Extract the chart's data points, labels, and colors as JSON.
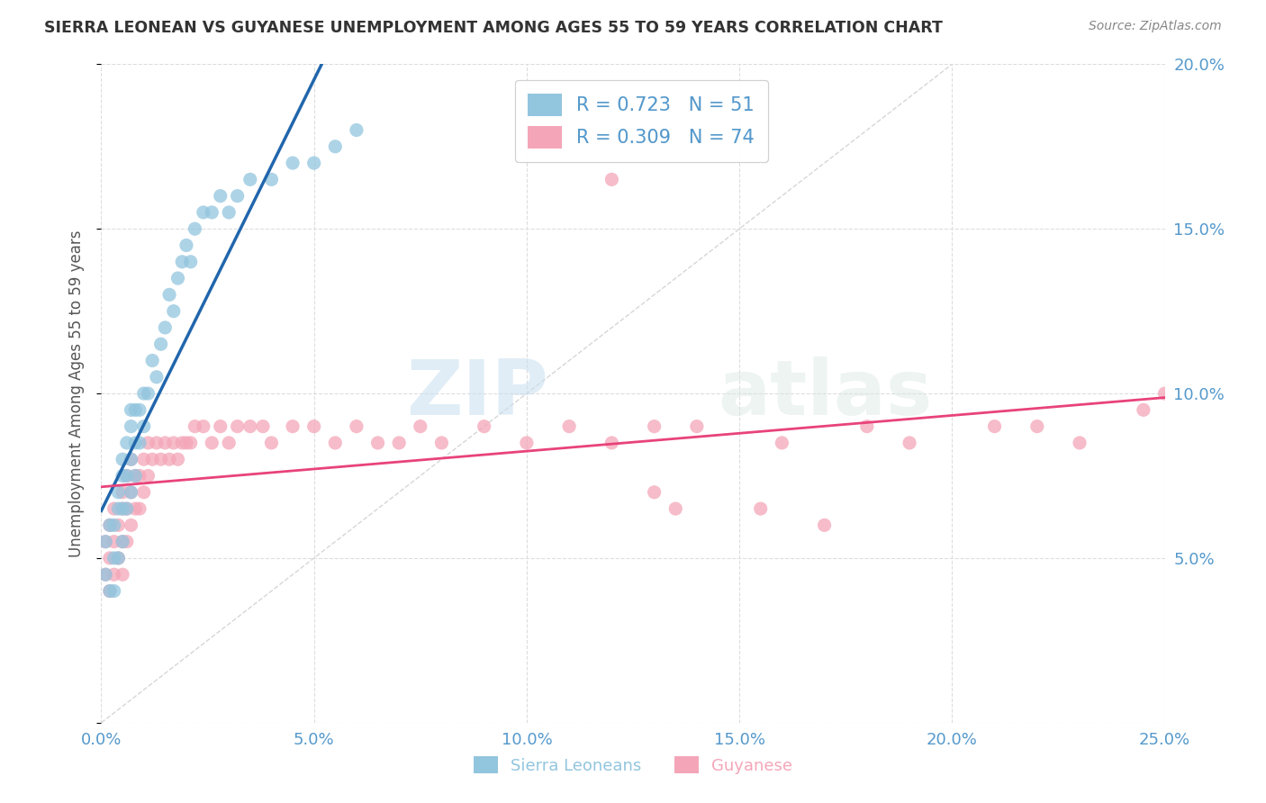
{
  "title": "SIERRA LEONEAN VS GUYANESE UNEMPLOYMENT AMONG AGES 55 TO 59 YEARS CORRELATION CHART",
  "source": "Source: ZipAtlas.com",
  "ylabel": "Unemployment Among Ages 55 to 59 years",
  "xlim": [
    0.0,
    0.25
  ],
  "ylim": [
    0.0,
    0.2
  ],
  "xticks": [
    0.0,
    0.05,
    0.1,
    0.15,
    0.2,
    0.25
  ],
  "xticklabels": [
    "0.0%",
    "5.0%",
    "10.0%",
    "15.0%",
    "20.0%",
    "25.0%"
  ],
  "yticks": [
    0.0,
    0.05,
    0.1,
    0.15,
    0.2
  ],
  "yticklabels": [
    "",
    "5.0%",
    "10.0%",
    "15.0%",
    "20.0%"
  ],
  "sierra_color": "#92c5de",
  "guyanese_color": "#f4a6b8",
  "sierra_line_color": "#2166ac",
  "guyanese_line_color": "#e8437a",
  "dashed_line_color": "#cccccc",
  "watermark_zip": "ZIP",
  "watermark_atlas": "atlas",
  "legend_R_sierra": "0.723",
  "legend_N_sierra": "51",
  "legend_R_guyanese": "0.309",
  "legend_N_guyanese": "74",
  "background_color": "#ffffff",
  "grid_color": "#dddddd",
  "tick_color": "#5599cc",
  "title_color": "#333333",
  "source_color": "#888888",
  "ylabel_color": "#555555",
  "sierra_x": [
    0.001,
    0.001,
    0.002,
    0.002,
    0.003,
    0.003,
    0.003,
    0.004,
    0.004,
    0.004,
    0.005,
    0.005,
    0.005,
    0.005,
    0.006,
    0.006,
    0.006,
    0.007,
    0.007,
    0.007,
    0.007,
    0.008,
    0.008,
    0.008,
    0.009,
    0.009,
    0.01,
    0.01,
    0.011,
    0.012,
    0.013,
    0.014,
    0.015,
    0.016,
    0.017,
    0.018,
    0.019,
    0.02,
    0.021,
    0.022,
    0.024,
    0.026,
    0.028,
    0.03,
    0.032,
    0.035,
    0.04,
    0.045,
    0.05,
    0.055,
    0.06
  ],
  "sierra_y": [
    0.045,
    0.055,
    0.04,
    0.06,
    0.04,
    0.05,
    0.06,
    0.05,
    0.065,
    0.07,
    0.055,
    0.065,
    0.075,
    0.08,
    0.065,
    0.075,
    0.085,
    0.07,
    0.08,
    0.09,
    0.095,
    0.075,
    0.085,
    0.095,
    0.085,
    0.095,
    0.09,
    0.1,
    0.1,
    0.11,
    0.105,
    0.115,
    0.12,
    0.13,
    0.125,
    0.135,
    0.14,
    0.145,
    0.14,
    0.15,
    0.155,
    0.155,
    0.16,
    0.155,
    0.16,
    0.165,
    0.165,
    0.17,
    0.17,
    0.175,
    0.18
  ],
  "guyanese_x": [
    0.001,
    0.001,
    0.002,
    0.002,
    0.002,
    0.003,
    0.003,
    0.003,
    0.004,
    0.004,
    0.005,
    0.005,
    0.005,
    0.005,
    0.006,
    0.006,
    0.006,
    0.007,
    0.007,
    0.007,
    0.008,
    0.008,
    0.009,
    0.009,
    0.01,
    0.01,
    0.011,
    0.011,
    0.012,
    0.013,
    0.014,
    0.015,
    0.016,
    0.017,
    0.018,
    0.019,
    0.02,
    0.021,
    0.022,
    0.024,
    0.026,
    0.028,
    0.03,
    0.032,
    0.035,
    0.038,
    0.04,
    0.045,
    0.05,
    0.055,
    0.06,
    0.065,
    0.07,
    0.075,
    0.08,
    0.09,
    0.1,
    0.11,
    0.12,
    0.13,
    0.14,
    0.16,
    0.18,
    0.19,
    0.21,
    0.22,
    0.23,
    0.135,
    0.155,
    0.17,
    0.12,
    0.13,
    0.245,
    0.25
  ],
  "guyanese_y": [
    0.045,
    0.055,
    0.04,
    0.05,
    0.06,
    0.045,
    0.055,
    0.065,
    0.05,
    0.06,
    0.045,
    0.055,
    0.065,
    0.07,
    0.055,
    0.065,
    0.075,
    0.06,
    0.07,
    0.08,
    0.065,
    0.075,
    0.065,
    0.075,
    0.07,
    0.08,
    0.075,
    0.085,
    0.08,
    0.085,
    0.08,
    0.085,
    0.08,
    0.085,
    0.08,
    0.085,
    0.085,
    0.085,
    0.09,
    0.09,
    0.085,
    0.09,
    0.085,
    0.09,
    0.09,
    0.09,
    0.085,
    0.09,
    0.09,
    0.085,
    0.09,
    0.085,
    0.085,
    0.09,
    0.085,
    0.09,
    0.085,
    0.09,
    0.085,
    0.09,
    0.09,
    0.085,
    0.09,
    0.085,
    0.09,
    0.09,
    0.085,
    0.065,
    0.065,
    0.06,
    0.165,
    0.07,
    0.095,
    0.1
  ]
}
